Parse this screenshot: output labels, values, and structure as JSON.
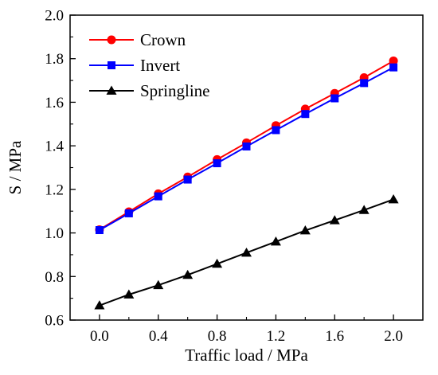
{
  "chart_data": {
    "type": "line",
    "xlabel": "Traffic load / MPa",
    "ylabel": "S / MPa",
    "xlim": [
      -0.2,
      2.2
    ],
    "ylim": [
      0.6,
      2.0
    ],
    "xticks": [
      "0.0",
      "0.4",
      "0.8",
      "1.2",
      "1.6",
      "2.0"
    ],
    "yticks": [
      "0.6",
      "0.8",
      "1.0",
      "1.2",
      "1.4",
      "1.6",
      "1.8",
      "2.0"
    ],
    "grid": false,
    "legend_position": "top-left",
    "x": [
      0.0,
      0.2,
      0.4,
      0.6,
      0.8,
      1.0,
      1.2,
      1.4,
      1.6,
      1.8,
      2.0
    ],
    "series": [
      {
        "name": "Crown",
        "color": "#ff0000",
        "marker": "circle",
        "values": [
          1.015,
          1.097,
          1.18,
          1.257,
          1.337,
          1.414,
          1.493,
          1.569,
          1.641,
          1.713,
          1.79
        ]
      },
      {
        "name": "Invert",
        "color": "#0000ff",
        "marker": "square",
        "values": [
          1.013,
          1.09,
          1.168,
          1.245,
          1.32,
          1.397,
          1.472,
          1.546,
          1.618,
          1.688,
          1.76
        ]
      },
      {
        "name": "Springline",
        "color": "#000000",
        "marker": "triangle",
        "values": [
          0.667,
          0.717,
          0.76,
          0.807,
          0.858,
          0.909,
          0.96,
          1.011,
          1.058,
          1.105,
          1.154
        ]
      }
    ]
  }
}
